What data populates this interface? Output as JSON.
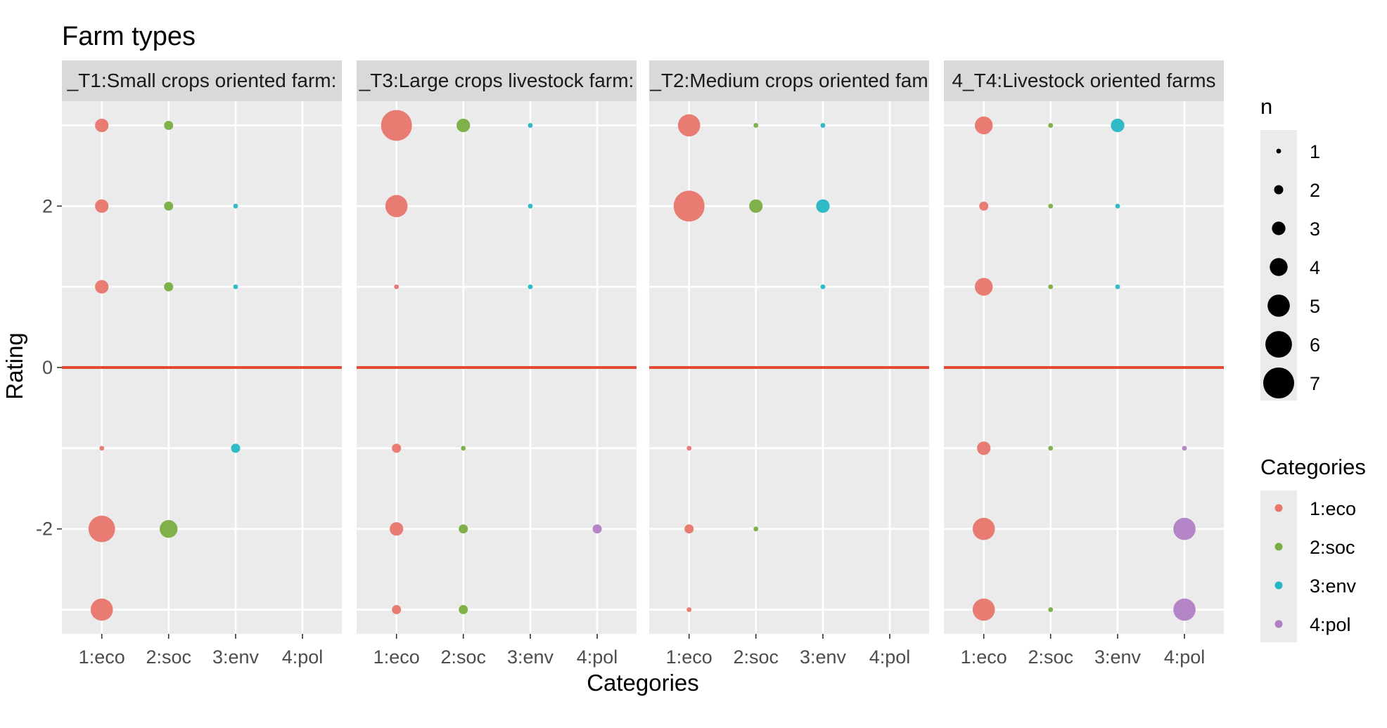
{
  "chart_data": {
    "type": "scatter",
    "title": "Farm types",
    "xlabel": "Categories",
    "ylabel": "Rating",
    "categories": [
      "1:eco",
      "2:soc",
      "3:env",
      "4:pol"
    ],
    "y_ticks": [
      -2,
      0,
      2
    ],
    "ylim": [
      -3.3,
      3.3
    ],
    "grid": true,
    "reference_line": {
      "y": 0,
      "color": "#e34a33"
    },
    "colors": {
      "1:eco": "#e8766d",
      "2:soc": "#7aad41",
      "3:env": "#26b7c3",
      "4:pol": "#b07fc4"
    },
    "size_legend": {
      "title": "n",
      "values": [
        1,
        2,
        3,
        4,
        5,
        6,
        7
      ]
    },
    "color_legend": {
      "title": "Categories",
      "entries": [
        "1:eco",
        "2:soc",
        "3:env",
        "4:pol"
      ]
    },
    "legend_placement": "right",
    "panels": [
      {
        "label": "_T1:Small crops oriented farm:",
        "points": [
          {
            "category": "1:eco",
            "rating": 3,
            "n": 3
          },
          {
            "category": "1:eco",
            "rating": 2,
            "n": 3
          },
          {
            "category": "1:eco",
            "rating": 1,
            "n": 3
          },
          {
            "category": "1:eco",
            "rating": -1,
            "n": 1
          },
          {
            "category": "1:eco",
            "rating": -2,
            "n": 6
          },
          {
            "category": "1:eco",
            "rating": -3,
            "n": 5
          },
          {
            "category": "2:soc",
            "rating": 3,
            "n": 2
          },
          {
            "category": "2:soc",
            "rating": 2,
            "n": 2
          },
          {
            "category": "2:soc",
            "rating": 1,
            "n": 2
          },
          {
            "category": "2:soc",
            "rating": -2,
            "n": 4
          },
          {
            "category": "3:env",
            "rating": 2,
            "n": 1
          },
          {
            "category": "3:env",
            "rating": 1,
            "n": 1
          },
          {
            "category": "3:env",
            "rating": -1,
            "n": 2
          }
        ]
      },
      {
        "label": "_T3:Large crops livestock farm:",
        "points": [
          {
            "category": "1:eco",
            "rating": 3,
            "n": 7
          },
          {
            "category": "1:eco",
            "rating": 2,
            "n": 5
          },
          {
            "category": "1:eco",
            "rating": 1,
            "n": 1
          },
          {
            "category": "1:eco",
            "rating": -1,
            "n": 2
          },
          {
            "category": "1:eco",
            "rating": -2,
            "n": 3
          },
          {
            "category": "1:eco",
            "rating": -3,
            "n": 2
          },
          {
            "category": "2:soc",
            "rating": 3,
            "n": 3
          },
          {
            "category": "2:soc",
            "rating": -1,
            "n": 1
          },
          {
            "category": "2:soc",
            "rating": -2,
            "n": 2
          },
          {
            "category": "2:soc",
            "rating": -3,
            "n": 2
          },
          {
            "category": "3:env",
            "rating": 3,
            "n": 1
          },
          {
            "category": "3:env",
            "rating": 2,
            "n": 1
          },
          {
            "category": "3:env",
            "rating": 1,
            "n": 1
          },
          {
            "category": "4:pol",
            "rating": -2,
            "n": 2
          }
        ]
      },
      {
        "label": "_T2:Medium crops oriented fam",
        "points": [
          {
            "category": "1:eco",
            "rating": 3,
            "n": 5
          },
          {
            "category": "1:eco",
            "rating": 2,
            "n": 7
          },
          {
            "category": "1:eco",
            "rating": -1,
            "n": 1
          },
          {
            "category": "1:eco",
            "rating": -2,
            "n": 2
          },
          {
            "category": "1:eco",
            "rating": -3,
            "n": 1
          },
          {
            "category": "2:soc",
            "rating": 3,
            "n": 1
          },
          {
            "category": "2:soc",
            "rating": 2,
            "n": 3
          },
          {
            "category": "2:soc",
            "rating": -2,
            "n": 1
          },
          {
            "category": "3:env",
            "rating": 3,
            "n": 1
          },
          {
            "category": "3:env",
            "rating": 2,
            "n": 3
          },
          {
            "category": "3:env",
            "rating": 1,
            "n": 1
          }
        ]
      },
      {
        "label": "4_T4:Livestock oriented farms",
        "points": [
          {
            "category": "1:eco",
            "rating": 3,
            "n": 4
          },
          {
            "category": "1:eco",
            "rating": 2,
            "n": 2
          },
          {
            "category": "1:eco",
            "rating": 1,
            "n": 4
          },
          {
            "category": "1:eco",
            "rating": -1,
            "n": 3
          },
          {
            "category": "1:eco",
            "rating": -2,
            "n": 5
          },
          {
            "category": "1:eco",
            "rating": -3,
            "n": 5
          },
          {
            "category": "2:soc",
            "rating": 3,
            "n": 1
          },
          {
            "category": "2:soc",
            "rating": 2,
            "n": 1
          },
          {
            "category": "2:soc",
            "rating": 1,
            "n": 1
          },
          {
            "category": "2:soc",
            "rating": -1,
            "n": 1
          },
          {
            "category": "2:soc",
            "rating": -3,
            "n": 1
          },
          {
            "category": "3:env",
            "rating": 3,
            "n": 3
          },
          {
            "category": "3:env",
            "rating": 2,
            "n": 1
          },
          {
            "category": "3:env",
            "rating": 1,
            "n": 1
          },
          {
            "category": "4:pol",
            "rating": -1,
            "n": 1
          },
          {
            "category": "4:pol",
            "rating": -2,
            "n": 5
          },
          {
            "category": "4:pol",
            "rating": -3,
            "n": 5
          }
        ]
      }
    ]
  }
}
